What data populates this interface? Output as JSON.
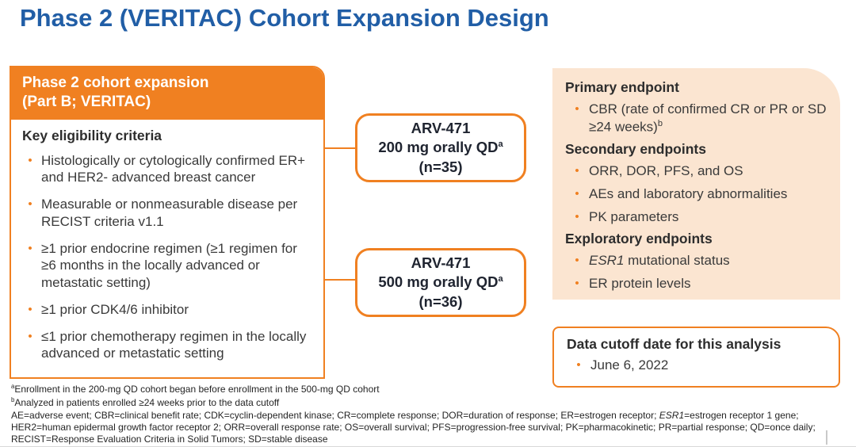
{
  "title": "Phase 2 (VERITAC) Cohort Expansion Design",
  "colors": {
    "accent_orange": "#F08021",
    "title_blue": "#215EA6",
    "panel_peach": "#FBE5D1"
  },
  "left_panel": {
    "header_line1": "Phase 2 cohort expansion",
    "header_line2": "(Part B; VERITAC)",
    "subheading": "Key eligibility criteria",
    "bullets": [
      "Histologically or cytologically confirmed ER+ and HER2- advanced breast cancer",
      "Measurable or nonmeasurable disease per RECIST criteria v1.1",
      "≥1 prior endocrine regimen (≥1 regimen for ≥6 months in the locally advanced or metastatic setting)",
      "≥1 prior CDK4/6 inhibitor",
      "≤1 prior chemotherapy regimen in the locally advanced or metastatic setting"
    ]
  },
  "arms": [
    {
      "drug": "ARV-471",
      "dose": "200 mg orally QD",
      "dose_sup": "a",
      "n": "(n=35)"
    },
    {
      "drug": "ARV-471",
      "dose": "500 mg orally QD",
      "dose_sup": "a",
      "n": "(n=36)"
    }
  ],
  "endpoints_panel": {
    "primary_heading": "Primary endpoint",
    "primary_bullet_text": "CBR (rate of confirmed CR or PR or SD ≥24 weeks)",
    "primary_bullet_sup": "b",
    "secondary_heading": "Secondary endpoints",
    "secondary_bullets": [
      "ORR, DOR, PFS, and OS",
      "AEs and laboratory abnormalities",
      "PK parameters"
    ],
    "exploratory_heading": "Exploratory endpoints",
    "exploratory_bullet1_italic": "ESR1",
    "exploratory_bullet1_rest": " mutational status",
    "exploratory_bullet2": "ER protein levels"
  },
  "cutoff_box": {
    "heading": "Data cutoff date for this analysis",
    "bullet": "June 6, 2022"
  },
  "footnotes": {
    "a_sup": "a",
    "a_text": "Enrollment in the 200-mg QD cohort began before enrollment in the 500-mg QD cohort",
    "b_sup": "b",
    "b_text": "Analyzed in patients enrolled ≥24 weeks prior to the data cutoff",
    "abbr_part1": "AE=adverse event; CBR=clinical benefit rate; CDK=cyclin-dependent kinase; CR=complete response; DOR=duration of response; ER=estrogen receptor; ",
    "abbr_italic": "ESR1",
    "abbr_part2": "=estrogen receptor 1 gene; HER2=human epidermal growth factor receptor 2; ORR=overall response rate; OS=overall survival; PFS=progression-free survival; PK=pharmacokinetic; PR=partial response; QD=once daily; RECIST=Response Evaluation Criteria in Solid Tumors; SD=stable disease"
  }
}
